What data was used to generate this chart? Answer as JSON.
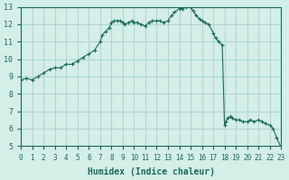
{
  "xlabel": "Humidex (Indice chaleur)",
  "ylabel": "",
  "bg_color": "#d4eee8",
  "grid_color": "#b0d8d0",
  "line_color": "#1a6b5a",
  "marker_color": "#1a6b5a",
  "x_values": [
    0,
    0.5,
    1,
    1.5,
    2,
    2.5,
    3,
    3.5,
    4,
    4.5,
    5,
    5.5,
    6,
    6.5,
    7,
    7.2,
    7.5,
    7.8,
    8,
    8.2,
    8.5,
    8.8,
    9,
    9.2,
    9.5,
    9.8,
    10,
    10.3,
    10.6,
    11,
    11.3,
    11.6,
    12,
    12.3,
    12.6,
    13,
    13.3,
    13.6,
    14,
    14.3,
    14.6,
    15,
    15.2,
    15.5,
    15.8,
    16,
    16.3,
    16.6,
    17,
    17.2,
    17.5,
    17.8,
    18,
    18.1,
    18.3,
    18.5,
    18.7,
    19,
    19.3,
    19.6,
    20,
    20.3,
    20.6,
    21,
    21.3,
    21.6,
    22,
    22.3,
    22.6,
    23
  ],
  "y_values": [
    8.8,
    8.9,
    8.8,
    9.0,
    9.2,
    9.4,
    9.5,
    9.5,
    9.7,
    9.7,
    9.9,
    10.1,
    10.3,
    10.5,
    11.0,
    11.4,
    11.6,
    11.8,
    12.1,
    12.2,
    12.2,
    12.2,
    12.1,
    12.0,
    12.1,
    12.2,
    12.1,
    12.1,
    12.0,
    11.9,
    12.1,
    12.2,
    12.2,
    12.2,
    12.1,
    12.2,
    12.5,
    12.7,
    12.9,
    12.9,
    13.0,
    13.0,
    12.8,
    12.5,
    12.3,
    12.2,
    12.1,
    12.0,
    11.5,
    11.2,
    11.0,
    10.8,
    6.2,
    6.4,
    6.6,
    6.7,
    6.6,
    6.5,
    6.5,
    6.4,
    6.4,
    6.5,
    6.4,
    6.5,
    6.4,
    6.3,
    6.2,
    6.0,
    5.5,
    4.9
  ],
  "xlim": [
    0,
    23
  ],
  "ylim": [
    5,
    13
  ],
  "yticks": [
    5,
    6,
    7,
    8,
    9,
    10,
    11,
    12,
    13
  ],
  "xticks": [
    0,
    1,
    2,
    3,
    4,
    5,
    6,
    7,
    8,
    9,
    10,
    11,
    12,
    13,
    14,
    15,
    16,
    17,
    18,
    19,
    20,
    21,
    22,
    23
  ]
}
